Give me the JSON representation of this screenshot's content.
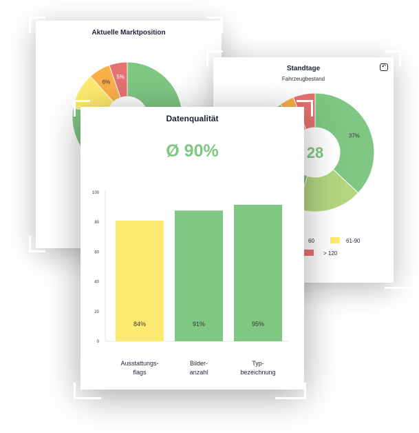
{
  "market": {
    "title": "Aktuelle Marktposition",
    "segments": [
      {
        "label": "",
        "value": 58,
        "color": "#7fc783"
      },
      {
        "label": "",
        "value": 15,
        "color": "#7fc783"
      },
      {
        "label": "",
        "value": 10,
        "color": "#fdeb71"
      },
      {
        "label": "6%",
        "value": 6,
        "color": "#fbb048"
      },
      {
        "label": "5%",
        "value": 5,
        "color": "#e57373"
      }
    ]
  },
  "standtage": {
    "title": "Standtage",
    "subtitle": "Fahrzeugbestand",
    "center_value": "28",
    "back_icon": "return-icon",
    "segments": [
      {
        "label": "37%",
        "value": 37,
        "color": "#7fc783"
      },
      {
        "label": "",
        "value": 18,
        "color": "#b4d67f"
      },
      {
        "label": "",
        "value": 35,
        "color": "#7fc783"
      },
      {
        "label": "",
        "value": 4,
        "color": "#fbb048"
      },
      {
        "label": "",
        "value": 6,
        "color": "#e57373"
      }
    ],
    "legend": [
      {
        "label": "60",
        "color": "#b4d67f"
      },
      {
        "label": "61-90",
        "color": "#fdeb71"
      },
      {
        "label": "> 120",
        "color": "#e57373"
      }
    ]
  },
  "quality": {
    "title": "Datenqualität",
    "average": "Ø 90%",
    "accent": "#7fc783",
    "chart_data": {
      "type": "bar",
      "categories": [
        "Ausstattungs-\nflags",
        "Bilder-\nanzahl",
        "Typ-\nbezeichnung"
      ],
      "values": [
        84,
        91,
        95
      ],
      "labels": [
        "84%",
        "91%",
        "95%"
      ],
      "colors": [
        "#fdeb71",
        "#7fc783",
        "#7fc783"
      ],
      "yticks": [
        "0",
        "20",
        "40",
        "60",
        "80",
        "100"
      ],
      "ylim": [
        0,
        100
      ],
      "grid": false
    }
  }
}
